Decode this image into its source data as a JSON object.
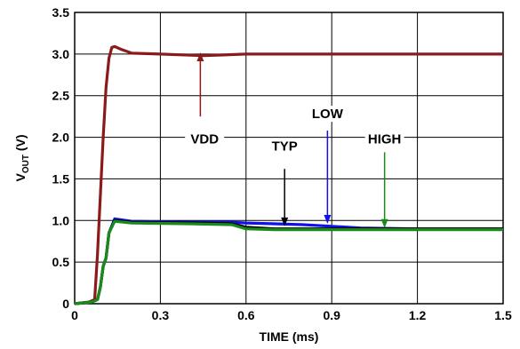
{
  "chart_data": {
    "type": "line",
    "title": "",
    "xlabel": "TIME (ms)",
    "ylabel_main": "V",
    "ylabel_sub": "OUT",
    "ylabel_unit": " (V)",
    "xlim": [
      0,
      1.5
    ],
    "ylim": [
      0,
      3.5
    ],
    "xticks": [
      0,
      0.3,
      0.6,
      0.9,
      1.2,
      1.5
    ],
    "xtick_labels": [
      "0",
      "0.3",
      "0.6",
      "0.9",
      "1.2",
      "1.5"
    ],
    "yticks": [
      0,
      0.5,
      1.0,
      1.5,
      2.0,
      2.5,
      3.0,
      3.5
    ],
    "ytick_labels": [
      "0",
      "0.5",
      "1.0",
      "1.5",
      "2.0",
      "2.5",
      "3.0",
      "3.5"
    ],
    "grid": true,
    "series": [
      {
        "name": "VDD",
        "color": "#8b1a1a",
        "x": [
          0,
          0.05,
          0.07,
          0.08,
          0.09,
          0.1,
          0.11,
          0.12,
          0.13,
          0.14,
          0.16,
          0.2,
          0.3,
          0.45,
          0.6,
          0.8,
          1.0,
          1.2,
          1.35,
          1.5
        ],
        "y": [
          0,
          0.02,
          0.05,
          0.6,
          1.3,
          2.0,
          2.6,
          2.95,
          3.08,
          3.09,
          3.06,
          3.01,
          3.0,
          2.98,
          3.0,
          3.0,
          3.0,
          3.0,
          3.0,
          3.0
        ]
      },
      {
        "name": "LOW",
        "color": "#1010ee",
        "x": [
          0,
          0.06,
          0.08,
          0.09,
          0.1,
          0.11,
          0.12,
          0.14,
          0.2,
          0.4,
          0.55,
          0.6,
          0.7,
          0.8,
          0.9,
          1.0,
          1.2,
          1.5
        ],
        "y": [
          0,
          0.02,
          0.05,
          0.2,
          0.45,
          0.55,
          0.85,
          1.02,
          0.99,
          0.98,
          0.98,
          0.97,
          0.96,
          0.95,
          0.93,
          0.91,
          0.9,
          0.9
        ]
      },
      {
        "name": "TYP",
        "color": "#000000",
        "x": [
          0,
          0.06,
          0.08,
          0.09,
          0.1,
          0.11,
          0.12,
          0.14,
          0.2,
          0.4,
          0.55,
          0.6,
          0.7,
          0.8,
          0.9,
          1.0,
          1.2,
          1.5
        ],
        "y": [
          0,
          0.02,
          0.05,
          0.2,
          0.45,
          0.55,
          0.85,
          1.0,
          0.98,
          0.97,
          0.96,
          0.92,
          0.9,
          0.9,
          0.9,
          0.9,
          0.9,
          0.9
        ]
      },
      {
        "name": "HIGH",
        "color": "#1a8a1a",
        "x": [
          0,
          0.06,
          0.08,
          0.09,
          0.1,
          0.11,
          0.12,
          0.14,
          0.2,
          0.4,
          0.55,
          0.6,
          0.7,
          0.8,
          0.9,
          1.0,
          1.2,
          1.5
        ],
        "y": [
          0,
          0.02,
          0.05,
          0.2,
          0.45,
          0.55,
          0.85,
          0.99,
          0.97,
          0.96,
          0.95,
          0.9,
          0.89,
          0.89,
          0.89,
          0.89,
          0.89,
          0.89
        ]
      }
    ],
    "annotations": [
      {
        "text": "VDD",
        "color": "#8b1a1a",
        "label_x": 0.455,
        "label_y": 1.95,
        "arrow_x": 0.44,
        "arrow_y_from": 2.25,
        "arrow_y_to": 3.02
      },
      {
        "text": "TYP",
        "color": "#000000",
        "label_x": 0.735,
        "label_y": 1.86,
        "arrow_x": 0.735,
        "arrow_y_from": 1.62,
        "arrow_y_to": 0.93
      },
      {
        "text": "LOW",
        "color": "#1010ee",
        "label_x": 0.885,
        "label_y": 2.25,
        "arrow_x": 0.885,
        "arrow_y_from": 2.08,
        "arrow_y_to": 0.96
      },
      {
        "text": "HIGH",
        "color": "#1a8a1a",
        "label_x": 1.085,
        "label_y": 1.95,
        "arrow_x": 1.085,
        "arrow_y_from": 1.82,
        "arrow_y_to": 0.91
      }
    ]
  }
}
